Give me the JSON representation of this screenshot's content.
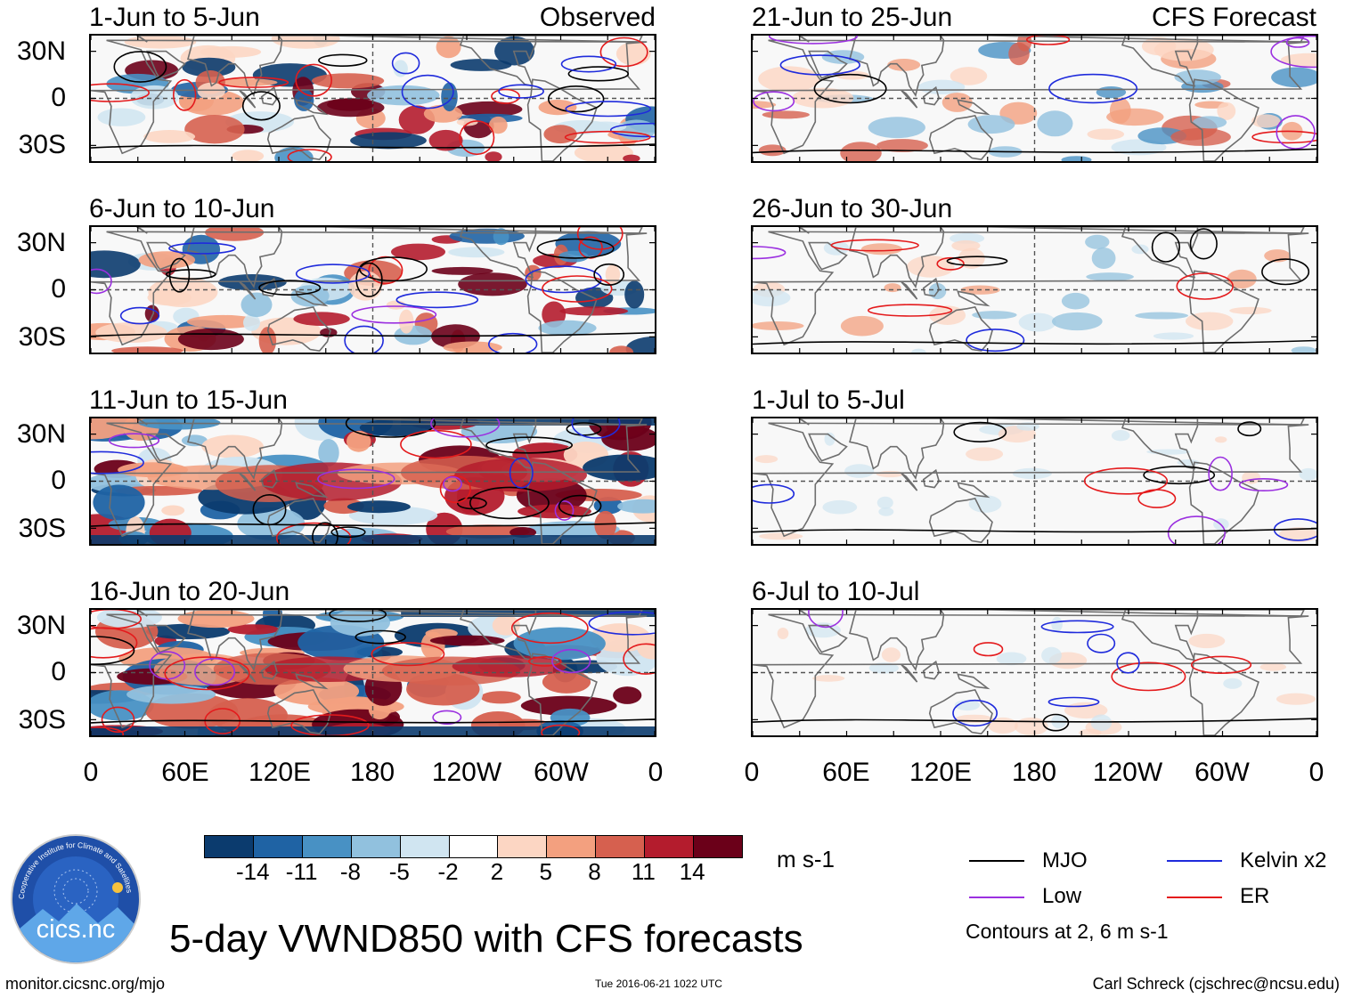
{
  "headers": {
    "left": "Observed",
    "right": "CFS Forecast"
  },
  "panels": {
    "left": [
      "1-Jun to 5-Jun",
      "6-Jun to 10-Jun",
      "11-Jun to 15-Jun",
      "16-Jun to 20-Jun"
    ],
    "right": [
      "21-Jun to 25-Jun",
      "26-Jun to 30-Jun",
      "1-Jul to 5-Jul",
      "6-Jul to 10-Jul"
    ]
  },
  "lat_labels": [
    "30N",
    "0",
    "30S"
  ],
  "lon_labels": [
    "0",
    "60E",
    "120E",
    "180",
    "120W",
    "60W",
    "0"
  ],
  "colorbar": {
    "ticks": [
      "-14",
      "-11",
      "-8",
      "-5",
      "-2",
      "2",
      "5",
      "8",
      "11",
      "14"
    ],
    "units": "m s-1",
    "colors": [
      "#0b3b6e",
      "#1f63a4",
      "#4891c4",
      "#91c1de",
      "#d0e5f1",
      "#ffffff",
      "#fcd6c3",
      "#f3a07f",
      "#d6604f",
      "#b41c2d",
      "#6b0019"
    ]
  },
  "legend": {
    "items": [
      {
        "label": "MJO",
        "color": "#000000"
      },
      {
        "label": "Kelvin x2",
        "color": "#1f2bdc"
      },
      {
        "label": "Low",
        "color": "#9b30e0"
      },
      {
        "label": "ER",
        "color": "#e41a1c"
      }
    ],
    "note": "Contours at 2, 6 m s-1"
  },
  "title": "5-day VWND850 with CFS forecasts",
  "logo_text": "cics.nc",
  "logo_ring_text": "Cooperative Institute for Climate and Satellites",
  "footer": {
    "left": "monitor.cicsnc.org/mjo",
    "center": "Tue 2016-06-21 1022 UTC",
    "right": "Carl Schreck (cjschrec@ncsu.edu)"
  }
}
